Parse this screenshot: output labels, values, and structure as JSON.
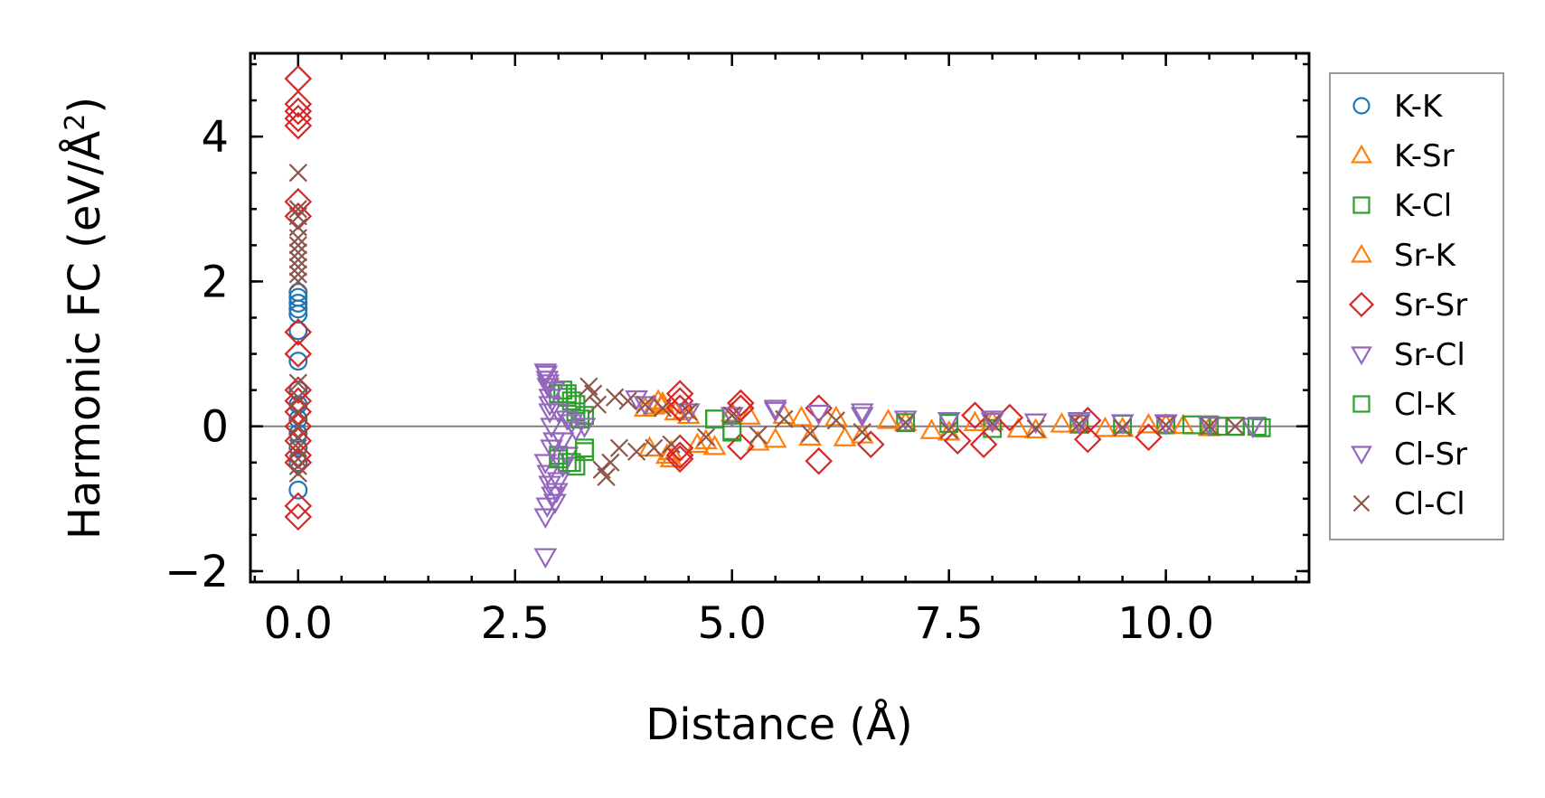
{
  "chart_data": {
    "type": "scatter",
    "title": "",
    "xlabel": "Distance (Å)",
    "ylabel": "Harmonic FC (eV/Å",
    "ylabel_sup": "2",
    "ylabel_close": ")",
    "xlim": [
      -0.55,
      11.65
    ],
    "ylim": [
      -2.15,
      5.15
    ],
    "xticks": [
      0.0,
      2.5,
      5.0,
      7.5,
      10.0
    ],
    "xtick_labels": [
      "0.0",
      "2.5",
      "5.0",
      "7.5",
      "10.0"
    ],
    "yticks": [
      -2,
      0,
      2,
      4
    ],
    "ytick_labels": [
      "−2",
      "0",
      "2",
      "4"
    ],
    "x_minor_step": 0.5,
    "y_minor_step": 0.5,
    "zero_line": true,
    "legend_position": "outside right",
    "series": [
      {
        "name": "K-K",
        "marker": "circle",
        "color": "#1f77b4",
        "x": [
          0,
          0,
          0,
          0,
          0,
          0,
          0,
          0,
          0,
          0,
          0,
          0,
          0,
          0
        ],
        "y": [
          1.85,
          1.78,
          1.7,
          1.62,
          1.55,
          1.32,
          0.9,
          0.5,
          0.3,
          0.1,
          -0.1,
          -0.3,
          -0.5,
          -0.88
        ]
      },
      {
        "name": "K-Sr",
        "marker": "triangle-up",
        "color": "#ff7f0e",
        "x": [
          4.0,
          4.1,
          4.15,
          4.2,
          4.25,
          4.3,
          4.35,
          4.5,
          4.7,
          5.0,
          5.3,
          5.6,
          5.9,
          6.2,
          6.5,
          7.0,
          7.5,
          8.0,
          8.5,
          9.0,
          9.5,
          10.0,
          10.5
        ],
        "y": [
          0.25,
          0.28,
          0.35,
          0.32,
          -0.4,
          -0.45,
          0.2,
          0.15,
          -0.2,
          0.18,
          -0.22,
          0.15,
          -0.15,
          0.12,
          -0.12,
          0.05,
          -0.08,
          0.06,
          -0.05,
          0.04,
          -0.03,
          0.02,
          -0.02
        ]
      },
      {
        "name": "K-Cl",
        "marker": "square",
        "color": "#2ca02c",
        "x": [
          3.05,
          3.1,
          3.15,
          3.2,
          3.25,
          3.0,
          3.1,
          3.2,
          3.3,
          4.8,
          5.0,
          7.0,
          8.0,
          9.0,
          10.0,
          10.5,
          10.8,
          11.05
        ],
        "y": [
          0.5,
          0.45,
          0.35,
          0.2,
          0.1,
          -0.4,
          -0.5,
          -0.55,
          -0.3,
          0.1,
          -0.08,
          0.05,
          -0.03,
          0.03,
          0.02,
          0.02,
          0.0,
          0.0
        ]
      },
      {
        "name": "Sr-K",
        "marker": "triangle-up",
        "color": "#ff7f0e",
        "x": [
          4.05,
          4.2,
          4.3,
          4.45,
          4.6,
          4.8,
          5.2,
          5.5,
          5.8,
          6.3,
          6.8,
          7.3,
          7.8,
          8.3,
          8.8,
          9.3,
          9.8,
          10.2
        ],
        "y": [
          -0.3,
          0.3,
          -0.35,
          0.22,
          -0.25,
          -0.28,
          0.14,
          -0.18,
          0.12,
          -0.16,
          0.08,
          -0.06,
          0.05,
          -0.04,
          0.03,
          -0.03,
          0.02,
          0.01
        ]
      },
      {
        "name": "Sr-Sr",
        "marker": "diamond",
        "color": "#d62728",
        "x": [
          0,
          0,
          0,
          0,
          0,
          0,
          0,
          0,
          0,
          0,
          0,
          0,
          0,
          0,
          0,
          0,
          0,
          0,
          4.4,
          4.4,
          4.4,
          4.4,
          4.4,
          4.4,
          5.1,
          5.1,
          5.1,
          6.0,
          6.0,
          6.6,
          7.6,
          7.8,
          7.9,
          8.2,
          9.1,
          9.1,
          9.8
        ],
        "y": [
          4.8,
          4.45,
          4.35,
          4.25,
          4.15,
          3.1,
          2.9,
          1.3,
          1.0,
          0.5,
          0.35,
          0.2,
          0.0,
          -0.2,
          -0.4,
          -0.5,
          -1.1,
          -1.25,
          0.45,
          0.35,
          0.25,
          -0.3,
          -0.4,
          -0.45,
          0.32,
          0.25,
          -0.28,
          0.25,
          -0.48,
          -0.25,
          -0.2,
          0.15,
          -0.25,
          0.12,
          0.08,
          -0.18,
          -0.15
        ]
      },
      {
        "name": "Sr-Cl",
        "marker": "triangle-down",
        "color": "#9467bd",
        "x": [
          2.85,
          2.86,
          2.87,
          2.88,
          2.9,
          2.9,
          2.92,
          2.95,
          2.85,
          2.88,
          2.9,
          2.93,
          2.96,
          3.0,
          3.05,
          3.1,
          3.9,
          5.5,
          6.5,
          8.0,
          9.0,
          10.0,
          10.5,
          11.0
        ],
        "y": [
          0.75,
          0.72,
          0.65,
          0.55,
          0.4,
          0.2,
          0.0,
          -0.2,
          -0.5,
          -0.65,
          -0.8,
          -0.95,
          -1.05,
          -0.75,
          -0.55,
          -0.4,
          0.38,
          0.25,
          0.2,
          0.1,
          0.08,
          0.05,
          0.02,
          0.0
        ]
      },
      {
        "name": "Cl-K",
        "marker": "square",
        "color": "#2ca02c",
        "x": [
          3.0,
          3.1,
          3.2,
          3.3,
          3.0,
          3.15,
          3.3,
          4.8,
          5.0,
          7.5,
          9.5,
          10.3,
          10.6,
          10.8,
          11.1
        ],
        "y": [
          0.45,
          0.4,
          0.3,
          0.15,
          -0.45,
          -0.5,
          -0.35,
          0.1,
          -0.06,
          0.04,
          0.03,
          0.02,
          0.0,
          0.0,
          -0.02
        ]
      },
      {
        "name": "Cl-Sr",
        "marker": "triangle-down",
        "color": "#9467bd",
        "x": [
          2.85,
          2.85,
          2.87,
          2.88,
          2.9,
          2.92,
          2.95,
          2.98,
          3.0,
          3.05,
          3.1,
          3.15,
          3.2,
          3.3,
          4.0,
          4.5,
          5.0,
          5.5,
          6.0,
          6.5,
          7.0,
          7.5,
          8.0,
          8.5,
          9.0,
          9.5,
          10.0,
          10.5,
          11.0
        ],
        "y": [
          -1.8,
          -1.25,
          -1.1,
          0.6,
          0.3,
          -0.3,
          0.5,
          -0.9,
          0.2,
          -0.2,
          0.1,
          0.05,
          -0.05,
          0.0,
          0.3,
          0.2,
          0.15,
          0.22,
          0.18,
          0.15,
          0.1,
          0.08,
          0.07,
          0.06,
          0.05,
          0.05,
          0.04,
          0.02,
          0.0
        ]
      },
      {
        "name": "Cl-Cl",
        "marker": "x",
        "color": "#8c564b",
        "x": [
          0,
          0,
          0,
          0,
          0,
          0,
          0,
          0,
          0,
          0,
          0,
          0,
          0,
          0,
          0,
          0,
          0,
          0,
          0,
          0,
          3.35,
          3.4,
          3.45,
          3.5,
          3.55,
          3.6,
          3.65,
          3.7,
          3.8,
          3.9,
          4.0,
          4.1,
          4.2,
          4.3,
          4.5,
          4.7,
          5.0,
          5.3,
          5.6,
          5.9,
          6.2,
          6.5,
          7.0,
          7.5,
          8.0,
          8.5,
          9.0,
          9.5,
          10.0,
          10.5,
          10.8
        ],
        "y": [
          3.5,
          3.0,
          2.9,
          2.75,
          2.6,
          2.5,
          2.4,
          2.3,
          2.2,
          2.1,
          2.0,
          0.6,
          0.4,
          0.2,
          0.0,
          -0.15,
          -0.3,
          -0.45,
          -0.55,
          -0.65,
          0.55,
          0.45,
          0.3,
          -0.6,
          -0.7,
          -0.5,
          0.4,
          -0.3,
          0.35,
          -0.35,
          0.3,
          -0.3,
          0.25,
          -0.25,
          0.2,
          -0.15,
          0.15,
          -0.12,
          0.1,
          -0.1,
          0.08,
          -0.08,
          0.05,
          -0.05,
          0.04,
          -0.03,
          0.03,
          -0.02,
          0.02,
          0.0,
          0.0
        ]
      }
    ],
    "legend": [
      {
        "label": "K-K",
        "marker": "circle",
        "color": "#1f77b4"
      },
      {
        "label": "K-Sr",
        "marker": "triangle-up",
        "color": "#ff7f0e"
      },
      {
        "label": "K-Cl",
        "marker": "square",
        "color": "#2ca02c"
      },
      {
        "label": "Sr-K",
        "marker": "triangle-up",
        "color": "#ff7f0e"
      },
      {
        "label": "Sr-Sr",
        "marker": "diamond",
        "color": "#d62728"
      },
      {
        "label": "Sr-Cl",
        "marker": "triangle-down",
        "color": "#9467bd"
      },
      {
        "label": "Cl-K",
        "marker": "square",
        "color": "#2ca02c"
      },
      {
        "label": "Cl-Sr",
        "marker": "triangle-down",
        "color": "#9467bd"
      },
      {
        "label": "Cl-Cl",
        "marker": "x",
        "color": "#8c564b"
      }
    ]
  }
}
